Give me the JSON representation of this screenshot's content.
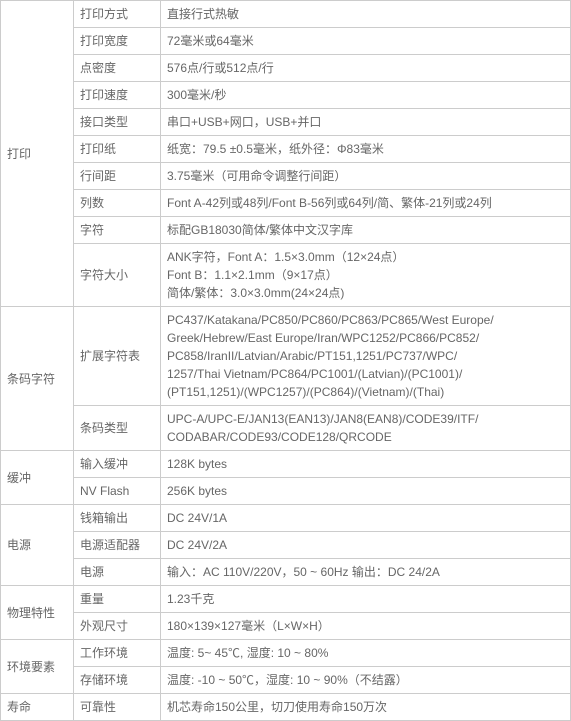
{
  "colors": {
    "border": "#cccccc",
    "text": "#666666",
    "background": "#ffffff"
  },
  "font_size": 12,
  "categories": {
    "print": {
      "label": "打印",
      "rowspan": 10
    },
    "barcode": {
      "label": "条码字符",
      "rowspan": 2
    },
    "buffer": {
      "label": "缓冲",
      "rowspan": 2
    },
    "power": {
      "label": "电源",
      "rowspan": 3
    },
    "physical": {
      "label": "物理特性",
      "rowspan": 2
    },
    "environment": {
      "label": "环境要素",
      "rowspan": 2
    },
    "life": {
      "label": "寿命",
      "rowspan": 1
    }
  },
  "rows": {
    "print_method": {
      "param": "打印方式",
      "value": "直接行式热敏"
    },
    "print_width": {
      "param": "打印宽度",
      "value": "72毫米或64毫米"
    },
    "dot_density": {
      "param": "点密度",
      "value": "576点/行或512点/行"
    },
    "print_speed": {
      "param": "打印速度",
      "value": "300毫米/秒"
    },
    "interface": {
      "param": "接口类型",
      "value": "串口+USB+网口，USB+并口"
    },
    "paper": {
      "param": "打印纸",
      "value": "纸宽：79.5 ±0.5毫米，纸外径：Φ83毫米"
    },
    "line_spacing": {
      "param": "行间距",
      "value": "3.75毫米（可用命令调整行间距）"
    },
    "columns": {
      "param": "列数",
      "value": "Font A-42列或48列/Font B-56列或64列/简、繁体-21列或24列"
    },
    "chars": {
      "param": "字符",
      "value": "标配GB18030简体/繁体中文汉字库"
    },
    "char_size": {
      "param": "字符大小",
      "value": "ANK字符，Font A：1.5×3.0mm（12×24点）\nFont B：1.1×2.1mm（9×17点）\n简体/繁体：3.0×3.0mm(24×24点)"
    },
    "ext_table": {
      "param": "扩展字符表",
      "value": "PC437/Katakana/PC850/PC860/PC863/PC865/West Europe/\nGreek/Hebrew/East Europe/Iran/WPC1252/PC866/PC852/\nPC858/IranII/Latvian/Arabic/PT151,1251/PC737/WPC/\n1257/Thai Vietnam/PC864/PC1001/(Latvian)/(PC1001)/\n(PT151,1251)/(WPC1257)/(PC864)/(Vietnam)/(Thai)"
    },
    "barcode_types": {
      "param": "条码类型",
      "value": "UPC-A/UPC-E/JAN13(EAN13)/JAN8(EAN8)/CODE39/ITF/\nCODABAR/CODE93/CODE128/QRCODE"
    },
    "input_buf": {
      "param": "输入缓冲",
      "value": "128K  bytes"
    },
    "nvflash": {
      "param": "NV Flash",
      "value": "256K bytes"
    },
    "cashbox": {
      "param": "钱箱输出",
      "value": "DC 24V/1A"
    },
    "adapter": {
      "param": "电源适配器",
      "value": "DC 24V/2A"
    },
    "power": {
      "param": "电源",
      "value": "输入：AC 110V/220V，50 ~ 60Hz    输出：DC 24/2A"
    },
    "weight": {
      "param": "重量",
      "value": "1.23千克"
    },
    "dimensions": {
      "param": "外观尺寸",
      "value": "180×139×127毫米（L×W×H）"
    },
    "work_env": {
      "param": "工作环境",
      "value": "温度: 5~ 45℃,   湿度: 10 ~ 80%"
    },
    "storage_env": {
      "param": "存储环境",
      "value": "温度: -10 ~ 50℃，湿度: 10 ~ 90%（不结露）"
    },
    "reliability": {
      "param": "可靠性",
      "value": "机芯寿命150公里，切刀使用寿命150万次"
    }
  }
}
